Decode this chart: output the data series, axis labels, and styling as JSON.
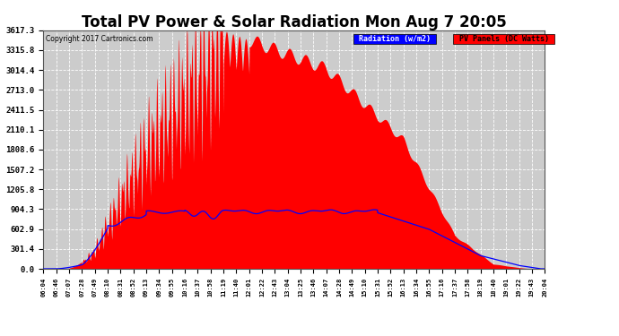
{
  "title": "Total PV Power & Solar Radiation Mon Aug 7 20:05",
  "copyright": "Copyright 2017 Cartronics.com",
  "legend_radiation": "Radiation (w/m2)",
  "legend_pv": "PV Panels (DC Watts)",
  "yticks": [
    0.0,
    301.4,
    602.9,
    904.3,
    1205.8,
    1507.2,
    1808.6,
    2110.1,
    2411.5,
    2713.0,
    3014.4,
    3315.8,
    3617.3
  ],
  "ymax": 3617.3,
  "bg_color": "#ffffff",
  "plot_bg_color": "#cccccc",
  "grid_color": "#ffffff",
  "bar_color": "#ff0000",
  "line_color": "#0000ff",
  "title_fontsize": 12,
  "xtick_labels": [
    "06:04",
    "06:46",
    "07:07",
    "07:28",
    "07:49",
    "08:10",
    "08:31",
    "08:52",
    "09:13",
    "09:34",
    "09:55",
    "10:16",
    "10:37",
    "10:58",
    "11:19",
    "11:40",
    "12:01",
    "12:22",
    "12:43",
    "13:04",
    "13:25",
    "13:46",
    "14:07",
    "14:28",
    "14:49",
    "15:10",
    "15:31",
    "15:52",
    "16:13",
    "16:34",
    "16:55",
    "17:16",
    "17:37",
    "17:58",
    "18:19",
    "18:40",
    "19:01",
    "19:22",
    "19:43",
    "20:04"
  ]
}
